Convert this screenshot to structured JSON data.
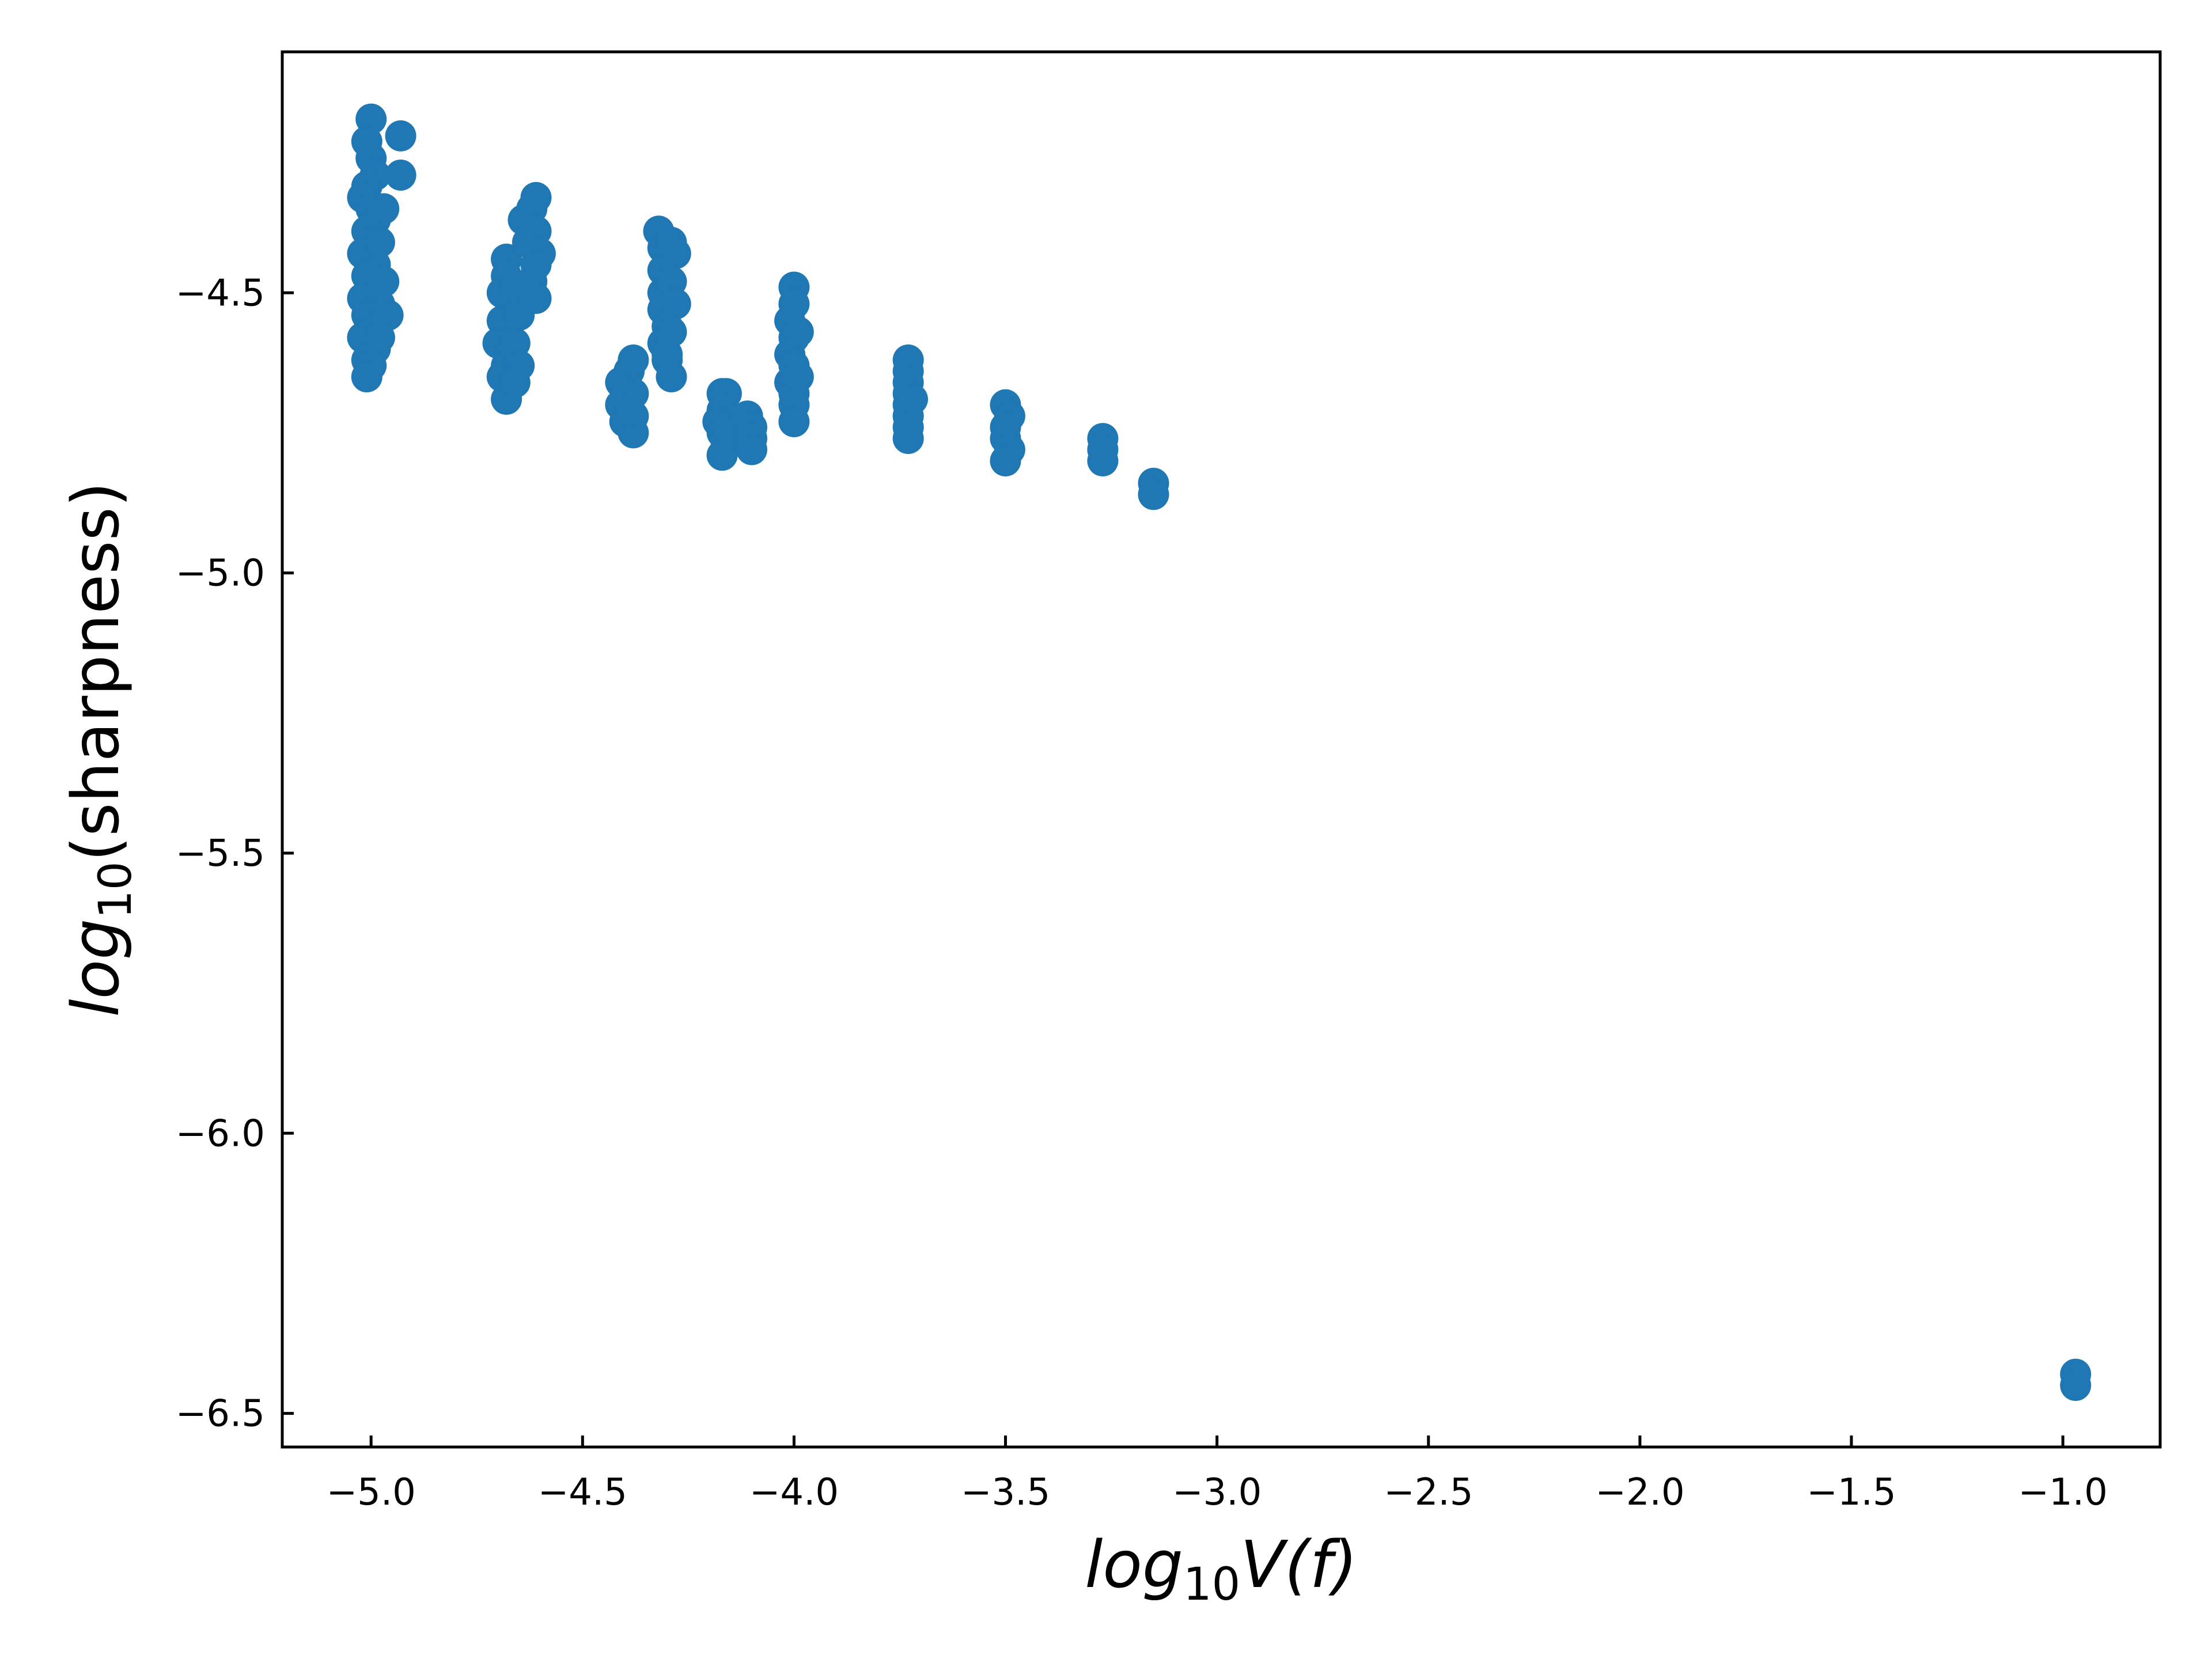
{
  "chart_data": {
    "type": "scatter",
    "title": "",
    "xlabel": {
      "base": "log",
      "sub": "10",
      "rest": "V(f)"
    },
    "ylabel": {
      "base": "log",
      "sub": "10",
      "rest": "(sharpness)"
    },
    "xlim": [
      -5.21,
      -0.77
    ],
    "ylim": [
      -6.56,
      -4.07
    ],
    "xticks": [
      -5.0,
      -4.5,
      -4.0,
      -3.5,
      -3.0,
      -2.5,
      -2.0,
      -1.5,
      -1.0
    ],
    "xtick_labels": [
      "−5.0",
      "−4.5",
      "−4.0",
      "−3.5",
      "−3.0",
      "−2.5",
      "−2.0",
      "−1.5",
      "−1.0"
    ],
    "yticks": [
      -4.5,
      -5.0,
      -5.5,
      -6.0,
      -6.5
    ],
    "ytick_labels": [
      "−4.5",
      "−5.0",
      "−5.5",
      "−6.0",
      "−6.5"
    ],
    "grid": false,
    "legend": "none",
    "marker_color": "#1f77b4",
    "series": [
      {
        "points": [
          [
            -5.0,
            -4.19
          ],
          [
            -5.01,
            -4.23
          ],
          [
            -5.0,
            -4.26
          ],
          [
            -4.99,
            -4.29
          ],
          [
            -5.01,
            -4.31
          ],
          [
            -5.02,
            -4.33
          ],
          [
            -5.0,
            -4.35
          ],
          [
            -4.99,
            -4.37
          ],
          [
            -5.01,
            -4.39
          ],
          [
            -5.0,
            -4.41
          ],
          [
            -5.02,
            -4.43
          ],
          [
            -4.99,
            -4.45
          ],
          [
            -5.01,
            -4.47
          ],
          [
            -5.0,
            -4.49
          ],
          [
            -5.02,
            -4.51
          ],
          [
            -4.98,
            -4.52
          ],
          [
            -5.01,
            -4.54
          ],
          [
            -5.0,
            -4.56
          ],
          [
            -5.02,
            -4.58
          ],
          [
            -4.99,
            -4.6
          ],
          [
            -5.01,
            -4.62
          ],
          [
            -5.0,
            -4.63
          ],
          [
            -5.01,
            -4.65
          ],
          [
            -4.97,
            -4.35
          ],
          [
            -4.98,
            -4.41
          ],
          [
            -4.97,
            -4.48
          ],
          [
            -4.96,
            -4.54
          ],
          [
            -4.98,
            -4.58
          ],
          [
            -4.93,
            -4.22
          ],
          [
            -4.93,
            -4.29
          ],
          [
            -4.68,
            -4.44
          ],
          [
            -4.68,
            -4.47
          ],
          [
            -4.69,
            -4.5
          ],
          [
            -4.67,
            -4.52
          ],
          [
            -4.69,
            -4.55
          ],
          [
            -4.68,
            -4.57
          ],
          [
            -4.7,
            -4.59
          ],
          [
            -4.67,
            -4.61
          ],
          [
            -4.68,
            -4.63
          ],
          [
            -4.69,
            -4.65
          ],
          [
            -4.68,
            -4.69
          ],
          [
            -4.66,
            -4.49
          ],
          [
            -4.65,
            -4.54
          ],
          [
            -4.66,
            -4.59
          ],
          [
            -4.65,
            -4.63
          ],
          [
            -4.66,
            -4.66
          ],
          [
            -4.64,
            -4.37
          ],
          [
            -4.63,
            -4.41
          ],
          [
            -4.62,
            -4.35
          ],
          [
            -4.61,
            -4.33
          ],
          [
            -4.61,
            -4.39
          ],
          [
            -4.6,
            -4.43
          ],
          [
            -4.61,
            -4.45
          ],
          [
            -4.62,
            -4.48
          ],
          [
            -4.61,
            -4.51
          ],
          [
            -4.41,
            -4.66
          ],
          [
            -4.41,
            -4.7
          ],
          [
            -4.4,
            -4.73
          ],
          [
            -4.4,
            -4.67
          ],
          [
            -4.39,
            -4.64
          ],
          [
            -4.38,
            -4.62
          ],
          [
            -4.38,
            -4.68
          ],
          [
            -4.38,
            -4.72
          ],
          [
            -4.38,
            -4.75
          ],
          [
            -4.39,
            -4.71
          ],
          [
            -4.32,
            -4.39
          ],
          [
            -4.31,
            -4.42
          ],
          [
            -4.31,
            -4.46
          ],
          [
            -4.31,
            -4.5
          ],
          [
            -4.31,
            -4.53
          ],
          [
            -4.3,
            -4.56
          ],
          [
            -4.31,
            -4.59
          ],
          [
            -4.3,
            -4.62
          ],
          [
            -4.29,
            -4.65
          ],
          [
            -4.29,
            -4.41
          ],
          [
            -4.28,
            -4.43
          ],
          [
            -4.29,
            -4.48
          ],
          [
            -4.28,
            -4.52
          ],
          [
            -4.29,
            -4.57
          ],
          [
            -4.3,
            -4.61
          ],
          [
            -4.17,
            -4.68
          ],
          [
            -4.16,
            -4.68
          ],
          [
            -4.17,
            -4.71
          ],
          [
            -4.18,
            -4.73
          ],
          [
            -4.17,
            -4.75
          ],
          [
            -4.16,
            -4.77
          ],
          [
            -4.17,
            -4.79
          ],
          [
            -4.16,
            -4.74
          ],
          [
            -4.11,
            -4.72
          ],
          [
            -4.1,
            -4.74
          ],
          [
            -4.1,
            -4.76
          ],
          [
            -4.1,
            -4.78
          ],
          [
            -4.0,
            -4.49
          ],
          [
            -4.0,
            -4.52
          ],
          [
            -4.01,
            -4.55
          ],
          [
            -4.0,
            -4.58
          ],
          [
            -4.01,
            -4.61
          ],
          [
            -4.0,
            -4.63
          ],
          [
            -4.01,
            -4.66
          ],
          [
            -4.0,
            -4.68
          ],
          [
            -4.0,
            -4.7
          ],
          [
            -4.0,
            -4.73
          ],
          [
            -3.99,
            -4.57
          ],
          [
            -3.99,
            -4.65
          ],
          [
            -3.73,
            -4.62
          ],
          [
            -3.73,
            -4.64
          ],
          [
            -3.73,
            -4.66
          ],
          [
            -3.73,
            -4.68
          ],
          [
            -3.73,
            -4.7
          ],
          [
            -3.73,
            -4.72
          ],
          [
            -3.73,
            -4.74
          ],
          [
            -3.73,
            -4.76
          ],
          [
            -3.72,
            -4.69
          ],
          [
            -3.5,
            -4.7
          ],
          [
            -3.49,
            -4.72
          ],
          [
            -3.5,
            -4.74
          ],
          [
            -3.5,
            -4.76
          ],
          [
            -3.49,
            -4.78
          ],
          [
            -3.5,
            -4.8
          ],
          [
            -3.27,
            -4.76
          ],
          [
            -3.27,
            -4.78
          ],
          [
            -3.27,
            -4.8
          ],
          [
            -3.15,
            -4.84
          ],
          [
            -3.15,
            -4.86
          ],
          [
            -0.97,
            -6.43
          ],
          [
            -0.97,
            -6.45
          ]
        ]
      }
    ]
  }
}
